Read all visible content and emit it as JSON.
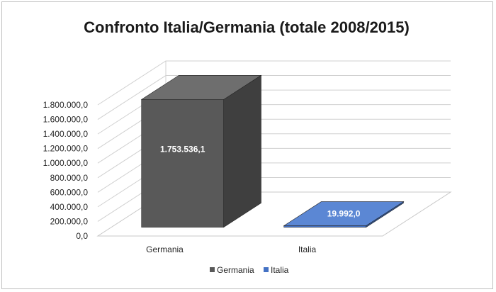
{
  "chart_data": {
    "type": "bar",
    "title": "Confronto Italia/Germania (totale 2008/2015)",
    "categories": [
      "Germania",
      "Italia"
    ],
    "values": [
      1753536.1,
      19992.0
    ],
    "value_labels": [
      "1.753.536,1",
      "19.992,0"
    ],
    "series": [
      {
        "name": "Germania",
        "values": [
          1753536.1,
          null
        ],
        "color": "#595959"
      },
      {
        "name": "Italia",
        "values": [
          null,
          19992.0
        ],
        "color": "#4472c4"
      }
    ],
    "ylim": [
      0,
      1800000
    ],
    "y_ticks": [
      "0,0",
      "200.000,0",
      "400.000,0",
      "600.000,0",
      "800.000,0",
      "1.000.000,0",
      "1.200.000,0",
      "1.400.000,0",
      "1.600.000,0",
      "1.800.000,0"
    ],
    "grid": true,
    "legend_position": "bottom",
    "legend": [
      "Germania",
      "Italia"
    ],
    "three_d": true
  }
}
